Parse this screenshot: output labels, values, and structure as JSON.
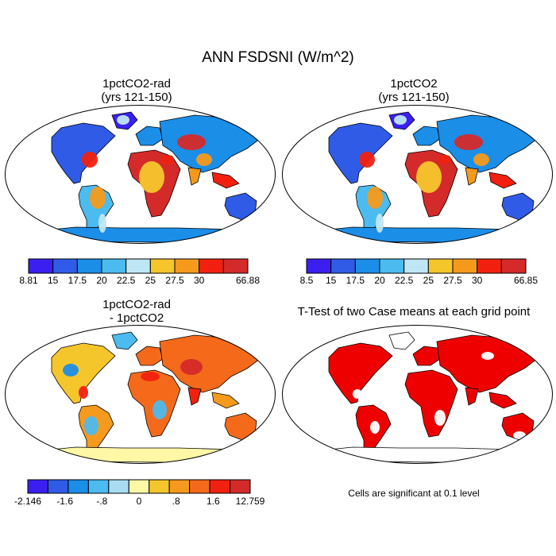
{
  "title": "ANN FSDSNI (W/m^2)",
  "panels": {
    "top_left": {
      "title_line1": "1pctCO2-rad",
      "title_line2": "(yrs 121-150)"
    },
    "top_right": {
      "title_line1": "1pctCO2",
      "title_line2": "(yrs 121-150)"
    },
    "bottom_left": {
      "title_line1": "1pctCO2-rad",
      "title_line2": "- 1pctCO2"
    },
    "bottom_right": {
      "title_line1": "T-Test of two Case means at each grid point",
      "title_line2": ""
    }
  },
  "colorbars": {
    "top_left": {
      "colors": [
        "#3a1ff0",
        "#2f5be6",
        "#1b8ee8",
        "#4cbbef",
        "#bfe6f5",
        "#f5c62c",
        "#f59a1c",
        "#f2210f",
        "#d42a2a"
      ],
      "labels": [
        "8.81",
        "15",
        "17.5",
        "20",
        "22.5",
        "25",
        "27.5",
        "30",
        "66.88"
      ]
    },
    "top_right": {
      "colors": [
        "#3a1ff0",
        "#2f5be6",
        "#1b8ee8",
        "#4cbbef",
        "#bfe6f5",
        "#f5c62c",
        "#f59a1c",
        "#f2210f",
        "#d42a2a"
      ],
      "labels": [
        "8.5",
        "15",
        "17.5",
        "20",
        "22.5",
        "25",
        "27.5",
        "30",
        "66.85"
      ]
    },
    "bottom_left": {
      "colors": [
        "#3a1ff0",
        "#2f5be6",
        "#1b8ee8",
        "#4cbbef",
        "#a9dcf2",
        "#fef7a6",
        "#f5c62c",
        "#f59a1c",
        "#f56a1a",
        "#f2210f",
        "#d42a2a"
      ],
      "labels": [
        "-2.146",
        "-1.6",
        "-.8",
        "0",
        ".8",
        "1.6",
        "12.759"
      ]
    }
  },
  "footnote": "Cells are significant at 0.1 level",
  "colors": {
    "significance": "#ee0000",
    "coast": "#000000"
  }
}
